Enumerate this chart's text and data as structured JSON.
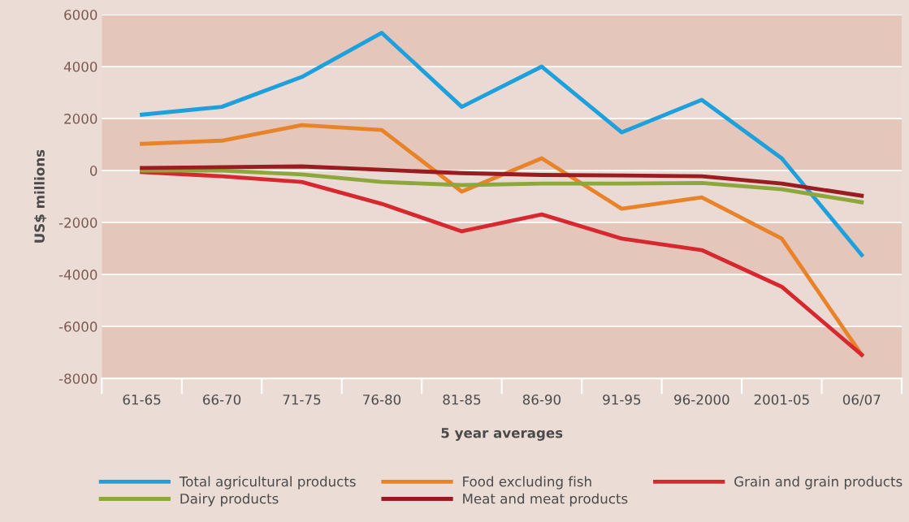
{
  "chart_data": {
    "type": "line",
    "xlabel": "5 year averages",
    "ylabel": "US$ millions",
    "categories": [
      "61-65",
      "66-70",
      "71-75",
      "76-80",
      "81-85",
      "86-90",
      "91-95",
      "96-2000",
      "2001-05",
      "06/07"
    ],
    "series": [
      {
        "name": "Total agricultural products",
        "color": "#1ea0dc",
        "values": [
          2150,
          2450,
          3600,
          5300,
          2450,
          4000,
          1470,
          2720,
          470,
          -3250
        ]
      },
      {
        "name": "Food excluding fish",
        "color": "#e8832a",
        "values": [
          1030,
          1150,
          1750,
          1560,
          -810,
          470,
          -1470,
          -1030,
          -2620,
          -7090
        ]
      },
      {
        "name": "Grain and grain products",
        "color": "#d7282f",
        "values": [
          -60,
          -220,
          -440,
          -1280,
          -2340,
          -1690,
          -2620,
          -3060,
          -4470,
          -7090
        ]
      },
      {
        "name": "Dairy products",
        "color": "#8ca83c",
        "values": [
          0,
          0,
          -150,
          -440,
          -560,
          -500,
          -500,
          -480,
          -720,
          -1220
        ]
      },
      {
        "name": "Meat and meat products",
        "color": "#9b1c20",
        "values": [
          100,
          130,
          160,
          30,
          -100,
          -170,
          -190,
          -220,
          -500,
          -970
        ]
      }
    ],
    "ylim": [
      -8000,
      6000
    ],
    "yticks": [
      -8000,
      -6000,
      -4000,
      -2000,
      0,
      2000,
      4000,
      6000
    ],
    "grid": "y",
    "legend": "bottom",
    "marker": "none",
    "line_style": "solid"
  }
}
